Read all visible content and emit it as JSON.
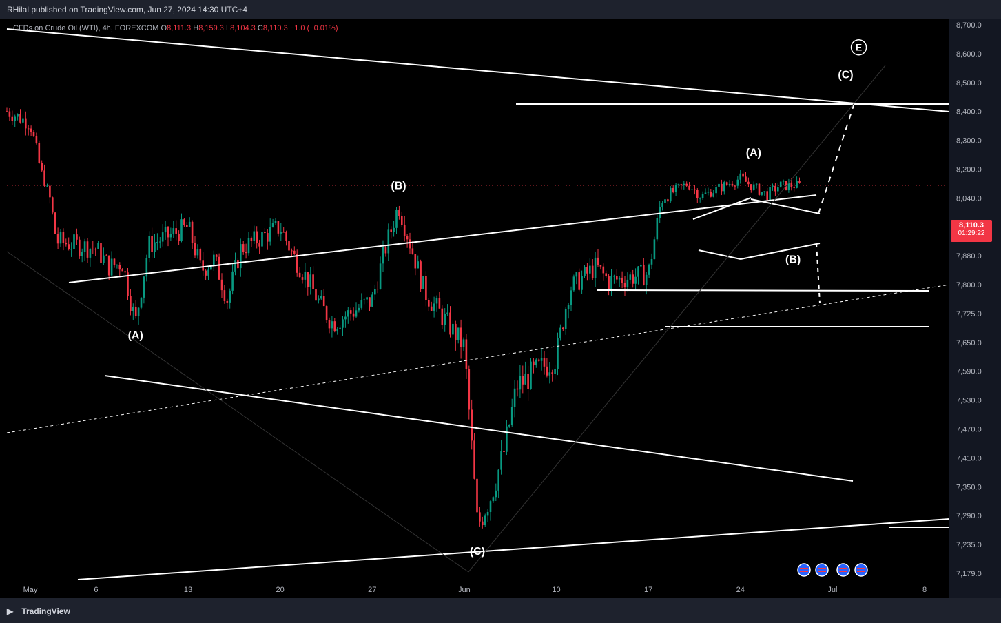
{
  "header": {
    "published_by": "RHilal published on TradingView.com, Jun 27, 2024 14:30 UTC+4"
  },
  "legend": {
    "symbol": "CFDs on Crude Oil (WTI), 4h, FOREXCOM",
    "o_label": "O",
    "o_val": "8,111.3",
    "h_label": "H",
    "h_val": "8,159.3",
    "l_label": "L",
    "l_val": "8,104.3",
    "c_label": "C",
    "c_val": "8,110.3",
    "change": "−1.0 (−0.01%)"
  },
  "price_badge": {
    "price": "8,110.3",
    "countdown": "01:29:22"
  },
  "footer": {
    "brand": "TradingView"
  },
  "colors": {
    "up": "#089981",
    "down": "#f23645",
    "lines": "#ffffff",
    "badge": "#f23645"
  },
  "chart_data": {
    "type": "candlestick",
    "ylim": [
      7179,
      8700
    ],
    "y_ticks": [
      8700,
      8600,
      8500,
      8400,
      8300,
      8200,
      8040,
      7960,
      7880,
      7800,
      7725,
      7650,
      7590,
      7530,
      7470,
      7410,
      7350,
      7290,
      7235,
      7179
    ],
    "y_tick_labels": [
      "8,700.0",
      "8,600.0",
      "8,500.0",
      "8,400.0",
      "8,300.0",
      "8,200.0",
      "8,040.0",
      "7,960.0",
      "7,880.0",
      "7,800.0",
      "7,725.0",
      "7,650.0",
      "7,590.0",
      "7,530.0",
      "7,470.0",
      "7,410.0",
      "7,350.0",
      "7,290.0",
      "7,235.0",
      "7,179.0"
    ],
    "x_tick_labels": [
      "May",
      "6",
      "13",
      "20",
      "27",
      "Jun",
      "10",
      "17",
      "24",
      "Jul",
      "8"
    ],
    "x_tick_dates": [
      "2024-05-01",
      "2024-05-06",
      "2024-05-13",
      "2024-05-20",
      "2024-05-27",
      "2024-06-03",
      "2024-06-10",
      "2024-06-17",
      "2024-06-24",
      "2024-07-01",
      "2024-07-08"
    ],
    "last_price": 8110.3,
    "path": [
      [
        "2024-05-01",
        8360
      ],
      [
        "2024-05-02",
        8150
      ],
      [
        "2024-05-03",
        7920
      ],
      [
        "2024-05-06",
        7900
      ],
      [
        "2024-05-07",
        7850
      ],
      [
        "2024-05-08",
        7860
      ],
      [
        "2024-05-09",
        7700
      ],
      [
        "2024-05-10",
        7910
      ],
      [
        "2024-05-13",
        7960
      ],
      [
        "2024-05-14",
        7840
      ],
      [
        "2024-05-15",
        7870
      ],
      [
        "2024-05-16",
        7760
      ],
      [
        "2024-05-17",
        7900
      ],
      [
        "2024-05-20",
        7960
      ],
      [
        "2024-05-21",
        7880
      ],
      [
        "2024-05-22",
        7820
      ],
      [
        "2024-05-23",
        7750
      ],
      [
        "2024-05-24",
        7700
      ],
      [
        "2024-05-27",
        7760
      ],
      [
        "2024-05-28",
        7900
      ],
      [
        "2024-05-29",
        8020
      ],
      [
        "2024-05-30",
        7900
      ],
      [
        "2024-05-31",
        7780
      ],
      [
        "2024-06-03",
        7640
      ],
      [
        "2024-06-04",
        7270
      ],
      [
        "2024-06-05",
        7330
      ],
      [
        "2024-06-06",
        7420
      ],
      [
        "2024-06-07",
        7560
      ],
      [
        "2024-06-10",
        7620
      ],
      [
        "2024-06-11",
        7790
      ],
      [
        "2024-06-12",
        7820
      ],
      [
        "2024-06-13",
        7850
      ],
      [
        "2024-06-14",
        7810
      ],
      [
        "2024-06-17",
        7830
      ],
      [
        "2024-06-18",
        8040
      ],
      [
        "2024-06-19",
        8080
      ],
      [
        "2024-06-20",
        8120
      ],
      [
        "2024-06-21",
        8050
      ],
      [
        "2024-06-24",
        8150
      ],
      [
        "2024-06-25",
        8100
      ],
      [
        "2024-06-26",
        8060
      ],
      [
        "2024-06-27",
        8110
      ]
    ],
    "annotations": {
      "wave_labels": [
        {
          "text": "(A)",
          "date": "2024-05-09",
          "price": 7660
        },
        {
          "text": "(B)",
          "date": "2024-05-29",
          "price": 8090
        },
        {
          "text": "(C)",
          "date": "2024-06-04",
          "price": 7215
        },
        {
          "text": "(A)",
          "date": "2024-06-25",
          "price": 8245
        },
        {
          "text": "(B)",
          "date": "2024-06-28",
          "price": 7860
        },
        {
          "text": "(C)",
          "date": "2024-07-02",
          "price": 8515
        }
      ],
      "circled_label": {
        "text": "E",
        "date": "2024-07-03",
        "price": 8610
      }
    }
  }
}
